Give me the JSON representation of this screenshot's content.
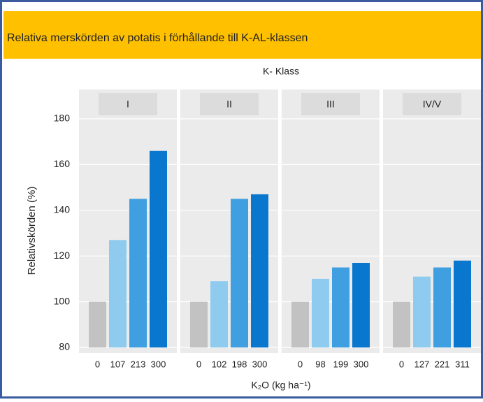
{
  "chart_data": {
    "type": "bar",
    "title": "Relativa merskörden av potatis i förhållande till K-AL-klassen",
    "facet_title": "K- Klass",
    "y_label": "Relativskörden (%)",
    "x_label": "K₂O (kg ha⁻¹)",
    "ylim": [
      80,
      180
    ],
    "yticks": [
      80,
      100,
      120,
      140,
      160,
      180
    ],
    "grid": true,
    "colors": [
      "#c2c2c2",
      "#8ecbee",
      "#3f9fe0",
      "#0a77cf"
    ],
    "panels": [
      {
        "name": "I",
        "categories": [
          "0",
          "107",
          "213",
          "300"
        ],
        "values": [
          100,
          127,
          145,
          166
        ]
      },
      {
        "name": "II",
        "categories": [
          "0",
          "102",
          "198",
          "300"
        ],
        "values": [
          100,
          109,
          145,
          147
        ]
      },
      {
        "name": "III",
        "categories": [
          "0",
          "98",
          "199",
          "300"
        ],
        "values": [
          100,
          110,
          115,
          117
        ]
      },
      {
        "name": "IV/V",
        "categories": [
          "0",
          "127",
          "221",
          "311"
        ],
        "values": [
          100,
          111,
          115,
          118
        ]
      }
    ]
  }
}
